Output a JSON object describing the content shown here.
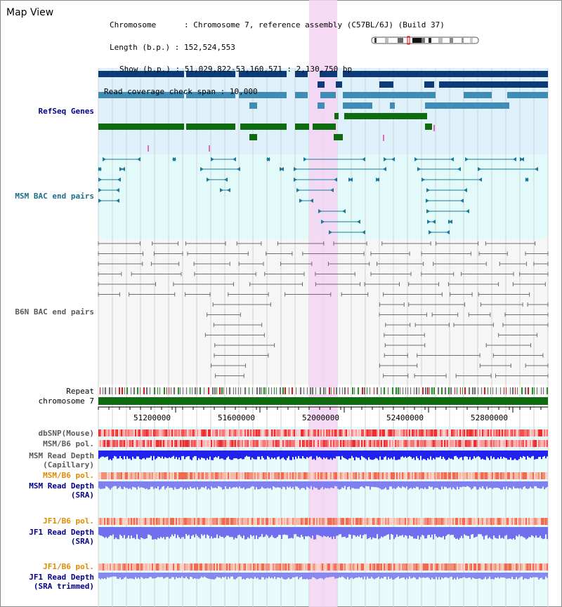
{
  "window": {
    "title": "Map View"
  },
  "info": {
    "chromosome_label": "Chromosome",
    "chromosome_value": "Chromosome 7, reference assembly (C57BL/6J) (Build 37)",
    "length_label": "Length (b.p.)",
    "length_value": "152,524,553",
    "show_label": "Show (b.p.)",
    "show_value": "51,029,822-53,160,571 : 2,130,750 bp",
    "span_label": "Read coverage check span",
    "span_value": "10,000"
  },
  "tracks": {
    "refseq": "RefSeq Genes",
    "msm_bac": "MSM BAC end pairs",
    "b6n_bac": "B6N BAC end pairs",
    "repeat": "Repeat",
    "chromosome": "chromosome 7",
    "dbsnp": "dbSNP(Mouse)",
    "msm_pol": "MSM/B6 pol.",
    "msm_depth_cap_1": "MSM Read Depth",
    "msm_depth_cap_2": "(Capillary)",
    "msm_pol_sra": "MSM/B6 pol.",
    "msm_depth_sra_1": "MSM Read Depth",
    "msm_depth_sra_2": "(SRA)",
    "jf1_pol": "JF1/B6 pol.",
    "jf1_depth_1": "JF1 Read Depth",
    "jf1_depth_2": "(SRA)",
    "jf1_pol_trim": "JF1/B6 pol.",
    "jf1_trim_1": "JF1 Read Depth",
    "jf1_trim_2": "(SRA trimmed)"
  },
  "axis": {
    "ticks": [
      "51200000",
      "51600000",
      "52000000",
      "52400000",
      "52800000"
    ]
  },
  "colors": {
    "refseq_dark": "#0d3b78",
    "refseq_mid": "#3f8cb5",
    "refseq_green": "#0f6b0f",
    "msm_bac": "#1e7898",
    "b6n_bac": "#6e6e6e",
    "highlight": "#f6d4f2",
    "label_blue": "#00008b",
    "label_teal": "#1a6f8a",
    "label_gray": "#5a5a5a",
    "label_orange": "#e08a00"
  }
}
